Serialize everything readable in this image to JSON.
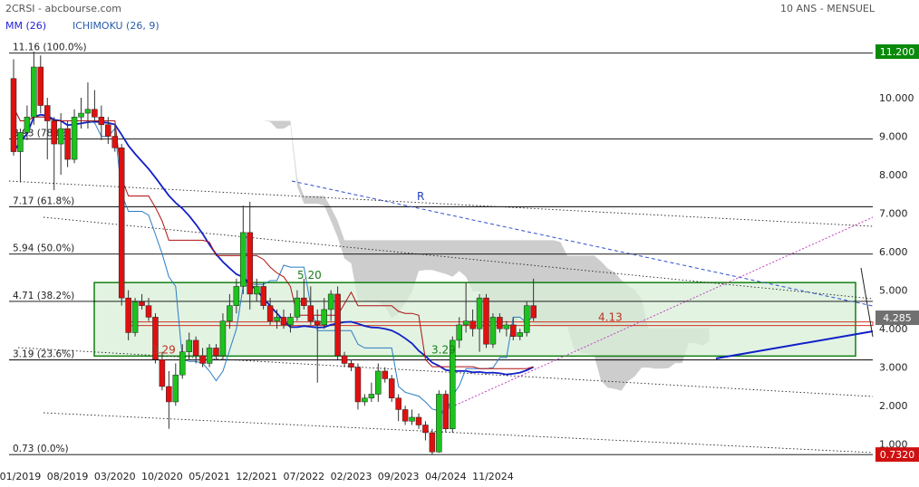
{
  "header": {
    "symbol_source": "2CRSI - abcbourse.com",
    "period": "10 ANS - MENSUEL",
    "indicator_ma": "MM (26)",
    "indicator_ichimoku": "ICHIMOKU (26, 9)"
  },
  "colors": {
    "up": "#1ec21e",
    "down": "#e01010",
    "ma": "#1020c8",
    "tenkan": "#2b7cc4",
    "kijun": "#b01010",
    "cloud": "#c8c8c8",
    "zone": "#d8efd8",
    "zone_border": "#128012",
    "fib": "#000000",
    "trend_r": "#3050d0",
    "trend_up": "#c040c0",
    "badge_green": "#0a8a0a",
    "badge_gray": "#707070",
    "badge_red": "#d01010",
    "hline_red": "#d03020"
  },
  "chart_data": {
    "type": "candlestick",
    "y_axis": {
      "min": 0.5,
      "max": 11.6,
      "ticks": [
        1.0,
        2.0,
        3.0,
        4.0,
        5.0,
        6.0,
        7.0,
        8.0,
        9.0,
        10.0
      ],
      "tick_labels": [
        "1.000",
        "2.000",
        "3.000",
        "4.000",
        "5.000",
        "6.000",
        "7.000",
        "8.000",
        "9.000",
        "10.000"
      ]
    },
    "x_axis": {
      "labels": [
        "01/2019",
        "08/2019",
        "03/2020",
        "10/2020",
        "05/2021",
        "12/2021",
        "07/2022",
        "02/2023",
        "09/2023",
        "04/2024",
        "11/2024"
      ],
      "label_positions_months": [
        1,
        8,
        15,
        22,
        29,
        36,
        43,
        50,
        57,
        64,
        71
      ]
    },
    "price_badges": {
      "high": "11.200",
      "last": "4.285",
      "low": "0.7320"
    },
    "fibonacci_levels": [
      {
        "value": 11.16,
        "label": "11.16  (100.0%)"
      },
      {
        "value": 8.93,
        "label": "8.93  (78.6%)"
      },
      {
        "value": 7.17,
        "label": "7.17  (61.8%)"
      },
      {
        "value": 5.94,
        "label": "5.94  (50.0%)"
      },
      {
        "value": 4.71,
        "label": "4.71  (38.2%)"
      },
      {
        "value": 3.19,
        "label": "3.19  (23.6%)"
      },
      {
        "value": 0.73,
        "label": "0.73  (0.0%)"
      }
    ],
    "zone": {
      "top": 5.2,
      "bottom": 3.29,
      "label_top": "5.20",
      "label_bottom": "3.29",
      "label_left": "3.29"
    },
    "line_413": {
      "value": 4.13,
      "label": "4.13"
    },
    "trendline_label": "R",
    "candles": [
      [
        10.5,
        11.0,
        8.5,
        8.6
      ],
      [
        8.6,
        9.2,
        7.8,
        9.1
      ],
      [
        9.1,
        9.8,
        8.9,
        9.5
      ],
      [
        9.5,
        11.2,
        9.3,
        10.8
      ],
      [
        10.8,
        11.1,
        9.6,
        9.8
      ],
      [
        9.8,
        10.0,
        8.4,
        9.4
      ],
      [
        9.4,
        9.5,
        7.6,
        8.8
      ],
      [
        8.8,
        9.6,
        8.0,
        9.2
      ],
      [
        9.2,
        9.4,
        8.2,
        8.4
      ],
      [
        8.4,
        9.7,
        8.3,
        9.5
      ],
      [
        9.5,
        10.0,
        9.2,
        9.6
      ],
      [
        9.6,
        10.4,
        9.2,
        9.7
      ],
      [
        9.7,
        10.2,
        9.4,
        9.5
      ],
      [
        9.5,
        9.8,
        8.9,
        9.3
      ],
      [
        9.3,
        9.5,
        8.8,
        9.0
      ],
      [
        9.0,
        9.3,
        8.6,
        8.7
      ],
      [
        8.7,
        8.8,
        4.6,
        4.8
      ],
      [
        4.8,
        5.0,
        3.7,
        3.9
      ],
      [
        3.9,
        4.8,
        3.8,
        4.7
      ],
      [
        4.7,
        4.9,
        4.5,
        4.6
      ],
      [
        4.6,
        4.8,
        4.2,
        4.3
      ],
      [
        4.3,
        4.4,
        3.1,
        3.2
      ],
      [
        3.2,
        3.4,
        2.4,
        2.5
      ],
      [
        2.5,
        2.9,
        1.4,
        2.1
      ],
      [
        2.1,
        3.1,
        2.0,
        2.8
      ],
      [
        2.8,
        3.6,
        2.7,
        3.4
      ],
      [
        3.4,
        3.9,
        3.2,
        3.7
      ],
      [
        3.7,
        3.8,
        3.1,
        3.3
      ],
      [
        3.3,
        3.5,
        3.0,
        3.1
      ],
      [
        3.1,
        3.6,
        3.0,
        3.5
      ],
      [
        3.5,
        3.6,
        3.2,
        3.3
      ],
      [
        3.3,
        4.4,
        3.2,
        4.2
      ],
      [
        4.2,
        4.9,
        4.0,
        4.6
      ],
      [
        4.6,
        5.3,
        4.4,
        5.1
      ],
      [
        5.1,
        7.2,
        4.9,
        6.5
      ],
      [
        6.5,
        7.3,
        4.5,
        4.9
      ],
      [
        4.9,
        5.3,
        4.7,
        5.1
      ],
      [
        5.1,
        5.2,
        4.5,
        4.6
      ],
      [
        4.6,
        4.8,
        4.1,
        4.2
      ],
      [
        4.2,
        4.5,
        4.0,
        4.3
      ],
      [
        4.3,
        4.5,
        4.0,
        4.1
      ],
      [
        4.1,
        4.4,
        3.9,
        4.3
      ],
      [
        4.3,
        5.0,
        4.2,
        4.8
      ],
      [
        4.8,
        5.3,
        4.5,
        4.6
      ],
      [
        4.6,
        5.1,
        4.1,
        4.2
      ],
      [
        4.2,
        4.5,
        2.6,
        4.1
      ],
      [
        4.1,
        4.8,
        4.0,
        4.5
      ],
      [
        4.5,
        5.0,
        4.2,
        4.9
      ],
      [
        4.9,
        5.1,
        3.2,
        3.3
      ],
      [
        3.3,
        3.4,
        3.0,
        3.1
      ],
      [
        3.1,
        3.2,
        2.9,
        3.0
      ],
      [
        3.0,
        3.1,
        1.9,
        2.1
      ],
      [
        2.1,
        2.3,
        2.0,
        2.2
      ],
      [
        2.2,
        2.6,
        2.1,
        2.3
      ],
      [
        2.3,
        3.1,
        2.1,
        2.9
      ],
      [
        2.9,
        3.0,
        2.6,
        2.7
      ],
      [
        2.7,
        2.8,
        2.1,
        2.2
      ],
      [
        2.2,
        2.3,
        1.6,
        1.9
      ],
      [
        1.9,
        2.0,
        1.5,
        1.6
      ],
      [
        1.6,
        1.9,
        1.5,
        1.7
      ],
      [
        1.7,
        1.8,
        1.4,
        1.5
      ],
      [
        1.5,
        1.6,
        1.1,
        1.3
      ],
      [
        1.3,
        1.4,
        0.73,
        0.8
      ],
      [
        0.8,
        2.4,
        0.78,
        2.3
      ],
      [
        2.3,
        2.4,
        1.3,
        1.4
      ],
      [
        1.4,
        3.8,
        1.3,
        3.7
      ],
      [
        3.7,
        4.3,
        3.5,
        4.1
      ],
      [
        4.1,
        5.2,
        3.9,
        4.2
      ],
      [
        4.2,
        4.5,
        3.8,
        4.0
      ],
      [
        4.0,
        4.9,
        3.4,
        4.8
      ],
      [
        4.8,
        4.9,
        3.5,
        3.6
      ],
      [
        3.6,
        4.4,
        3.5,
        4.3
      ],
      [
        4.3,
        4.4,
        3.9,
        4.0
      ],
      [
        4.0,
        4.2,
        3.8,
        4.1
      ],
      [
        4.1,
        4.3,
        3.7,
        3.8
      ],
      [
        3.8,
        4.0,
        3.7,
        3.9
      ],
      [
        3.9,
        4.7,
        3.8,
        4.6
      ],
      [
        4.6,
        5.3,
        4.2,
        4.285
      ]
    ]
  }
}
